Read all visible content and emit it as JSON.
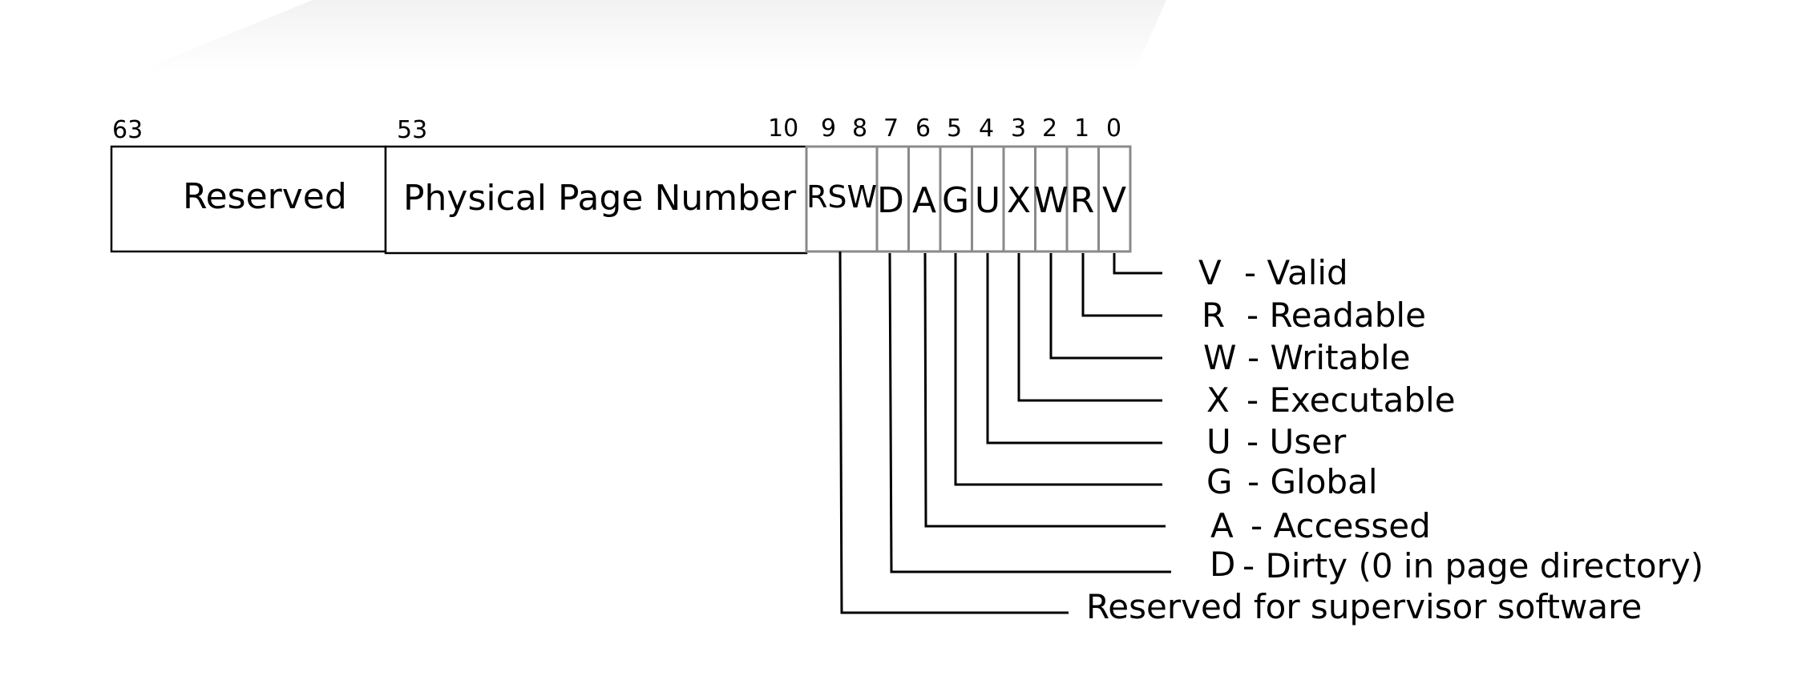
{
  "fields": {
    "reserved": "Reserved",
    "ppn": "Physical Page Number",
    "rsw": "RSW"
  },
  "bit_numbers": {
    "b63": "63",
    "b53": "53",
    "b10": "10",
    "b9": "9",
    "b8": "8",
    "b7": "7",
    "b6": "6",
    "b5": "5",
    "b4": "4",
    "b3": "3",
    "b2": "2",
    "b1": "1",
    "b0": "0"
  },
  "flags": [
    "D",
    "A",
    "G",
    "U",
    "X",
    "W",
    "R",
    "V"
  ],
  "legend": [
    {
      "letter": "V",
      "desc": "- Valid"
    },
    {
      "letter": "R",
      "desc": "- Readable"
    },
    {
      "letter": "W",
      "desc": "- Writable"
    },
    {
      "letter": "X",
      "desc": "- Executable"
    },
    {
      "letter": "U",
      "desc": "- User"
    },
    {
      "letter": "G",
      "desc": "- Global"
    },
    {
      "letter": "A",
      "desc": "- Accessed"
    },
    {
      "letter": "D",
      "desc": "- Dirty (0 in page directory)"
    }
  ],
  "rsw_description": "Reserved for supervisor software"
}
